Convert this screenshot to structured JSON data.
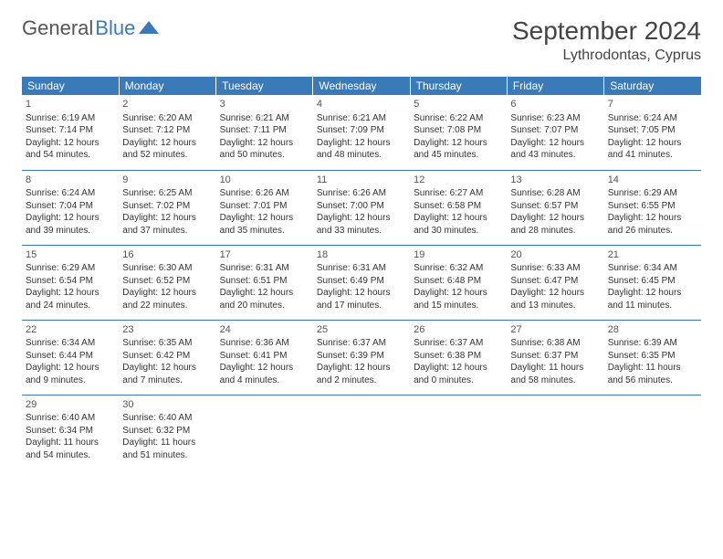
{
  "logo": {
    "text1": "General",
    "text2": "Blue"
  },
  "title": "September 2024",
  "location": "Lythrodontas, Cyprus",
  "colors": {
    "header_bg": "#3a7ab8",
    "header_text": "#ffffff",
    "border": "#3a7ab8",
    "text": "#333333",
    "logo_gray": "#555555",
    "logo_blue": "#3a7ab8"
  },
  "weekdays": [
    "Sunday",
    "Monday",
    "Tuesday",
    "Wednesday",
    "Thursday",
    "Friday",
    "Saturday"
  ],
  "weeks": [
    [
      {
        "n": "1",
        "sr": "6:19 AM",
        "ss": "7:14 PM",
        "dl": "12 hours and 54 minutes."
      },
      {
        "n": "2",
        "sr": "6:20 AM",
        "ss": "7:12 PM",
        "dl": "12 hours and 52 minutes."
      },
      {
        "n": "3",
        "sr": "6:21 AM",
        "ss": "7:11 PM",
        "dl": "12 hours and 50 minutes."
      },
      {
        "n": "4",
        "sr": "6:21 AM",
        "ss": "7:09 PM",
        "dl": "12 hours and 48 minutes."
      },
      {
        "n": "5",
        "sr": "6:22 AM",
        "ss": "7:08 PM",
        "dl": "12 hours and 45 minutes."
      },
      {
        "n": "6",
        "sr": "6:23 AM",
        "ss": "7:07 PM",
        "dl": "12 hours and 43 minutes."
      },
      {
        "n": "7",
        "sr": "6:24 AM",
        "ss": "7:05 PM",
        "dl": "12 hours and 41 minutes."
      }
    ],
    [
      {
        "n": "8",
        "sr": "6:24 AM",
        "ss": "7:04 PM",
        "dl": "12 hours and 39 minutes."
      },
      {
        "n": "9",
        "sr": "6:25 AM",
        "ss": "7:02 PM",
        "dl": "12 hours and 37 minutes."
      },
      {
        "n": "10",
        "sr": "6:26 AM",
        "ss": "7:01 PM",
        "dl": "12 hours and 35 minutes."
      },
      {
        "n": "11",
        "sr": "6:26 AM",
        "ss": "7:00 PM",
        "dl": "12 hours and 33 minutes."
      },
      {
        "n": "12",
        "sr": "6:27 AM",
        "ss": "6:58 PM",
        "dl": "12 hours and 30 minutes."
      },
      {
        "n": "13",
        "sr": "6:28 AM",
        "ss": "6:57 PM",
        "dl": "12 hours and 28 minutes."
      },
      {
        "n": "14",
        "sr": "6:29 AM",
        "ss": "6:55 PM",
        "dl": "12 hours and 26 minutes."
      }
    ],
    [
      {
        "n": "15",
        "sr": "6:29 AM",
        "ss": "6:54 PM",
        "dl": "12 hours and 24 minutes."
      },
      {
        "n": "16",
        "sr": "6:30 AM",
        "ss": "6:52 PM",
        "dl": "12 hours and 22 minutes."
      },
      {
        "n": "17",
        "sr": "6:31 AM",
        "ss": "6:51 PM",
        "dl": "12 hours and 20 minutes."
      },
      {
        "n": "18",
        "sr": "6:31 AM",
        "ss": "6:49 PM",
        "dl": "12 hours and 17 minutes."
      },
      {
        "n": "19",
        "sr": "6:32 AM",
        "ss": "6:48 PM",
        "dl": "12 hours and 15 minutes."
      },
      {
        "n": "20",
        "sr": "6:33 AM",
        "ss": "6:47 PM",
        "dl": "12 hours and 13 minutes."
      },
      {
        "n": "21",
        "sr": "6:34 AM",
        "ss": "6:45 PM",
        "dl": "12 hours and 11 minutes."
      }
    ],
    [
      {
        "n": "22",
        "sr": "6:34 AM",
        "ss": "6:44 PM",
        "dl": "12 hours and 9 minutes."
      },
      {
        "n": "23",
        "sr": "6:35 AM",
        "ss": "6:42 PM",
        "dl": "12 hours and 7 minutes."
      },
      {
        "n": "24",
        "sr": "6:36 AM",
        "ss": "6:41 PM",
        "dl": "12 hours and 4 minutes."
      },
      {
        "n": "25",
        "sr": "6:37 AM",
        "ss": "6:39 PM",
        "dl": "12 hours and 2 minutes."
      },
      {
        "n": "26",
        "sr": "6:37 AM",
        "ss": "6:38 PM",
        "dl": "12 hours and 0 minutes."
      },
      {
        "n": "27",
        "sr": "6:38 AM",
        "ss": "6:37 PM",
        "dl": "11 hours and 58 minutes."
      },
      {
        "n": "28",
        "sr": "6:39 AM",
        "ss": "6:35 PM",
        "dl": "11 hours and 56 minutes."
      }
    ],
    [
      {
        "n": "29",
        "sr": "6:40 AM",
        "ss": "6:34 PM",
        "dl": "11 hours and 54 minutes."
      },
      {
        "n": "30",
        "sr": "6:40 AM",
        "ss": "6:32 PM",
        "dl": "11 hours and 51 minutes."
      },
      null,
      null,
      null,
      null,
      null
    ]
  ],
  "labels": {
    "sunrise": "Sunrise: ",
    "sunset": "Sunset: ",
    "daylight": "Daylight: "
  }
}
